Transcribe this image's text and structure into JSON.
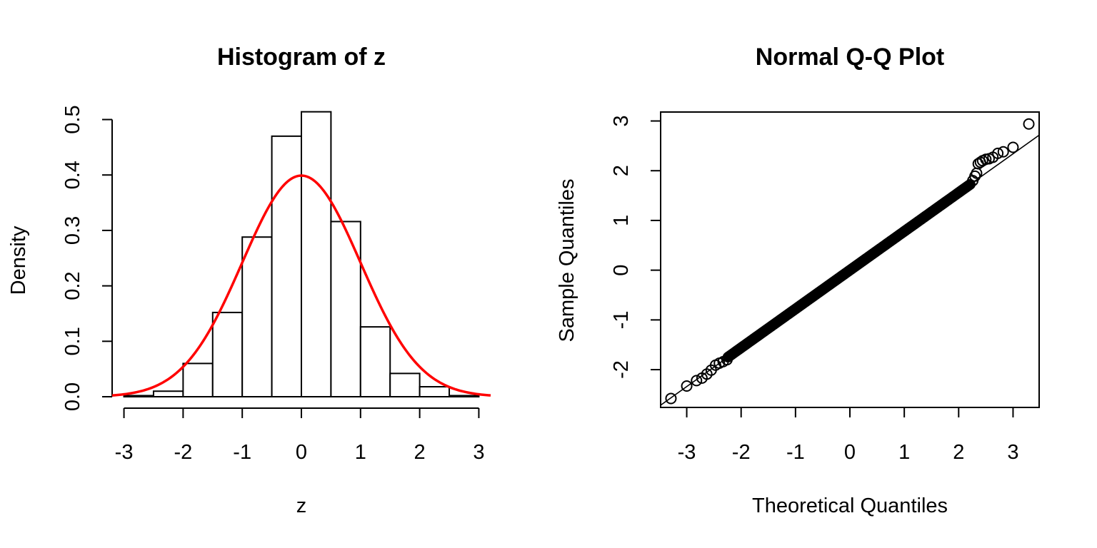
{
  "chart_data": [
    {
      "type": "histogram",
      "title": "Histogram of z",
      "xlabel": "z",
      "ylabel": "Density",
      "xlim": [
        -3.2,
        3.2
      ],
      "ylim": [
        0,
        0.52
      ],
      "xticks": [
        -3,
        -2,
        -1,
        0,
        1,
        2,
        3
      ],
      "yticks": [
        0.0,
        0.1,
        0.2,
        0.3,
        0.4,
        0.5
      ],
      "ytick_labels": [
        "0.0",
        "0.1",
        "0.2",
        "0.3",
        "0.4",
        "0.5"
      ],
      "bins": [
        -3.0,
        -2.5,
        -2.0,
        -1.5,
        -1.0,
        -0.5,
        0.0,
        0.5,
        1.0,
        1.5,
        2.0,
        2.5,
        3.0
      ],
      "density": [
        0.002,
        0.01,
        0.06,
        0.152,
        0.288,
        0.47,
        0.514,
        0.316,
        0.126,
        0.042,
        0.018,
        0.002
      ],
      "overlay": {
        "type": "line",
        "name": "standard normal density",
        "mean": 0,
        "sd": 1,
        "color": "#ff0000"
      }
    },
    {
      "type": "scatter",
      "title": "Normal Q-Q Plot",
      "xlabel": "Theoretical Quantiles",
      "ylabel": "Sample Quantiles",
      "xlim": [
        -3.48,
        3.48
      ],
      "ylim": [
        -2.76,
        3.18
      ],
      "xticks": [
        -3,
        -2,
        -1,
        0,
        1,
        2,
        3
      ],
      "yticks": [
        -2,
        -1,
        0,
        1,
        2,
        3
      ],
      "n": 1000,
      "reference_line": {
        "intercept": 0.0,
        "slope": 0.78
      },
      "points": [
        [
          -3.29,
          -2.58
        ],
        [
          -3.0,
          -2.33
        ],
        [
          -2.82,
          -2.22
        ],
        [
          -2.72,
          -2.17
        ],
        [
          -2.63,
          -2.09
        ],
        [
          -2.55,
          -2.01
        ],
        [
          -2.47,
          -1.91
        ],
        [
          -2.4,
          -1.87
        ],
        [
          -2.33,
          -1.84
        ],
        [
          -2.26,
          -1.8
        ],
        [
          2.26,
          1.8
        ],
        [
          2.3,
          1.89
        ],
        [
          2.33,
          1.95
        ],
        [
          2.36,
          2.14
        ],
        [
          2.4,
          2.17
        ],
        [
          2.44,
          2.2
        ],
        [
          2.5,
          2.23
        ],
        [
          2.56,
          2.24
        ],
        [
          2.63,
          2.27
        ],
        [
          2.72,
          2.35
        ],
        [
          2.82,
          2.38
        ],
        [
          3.0,
          2.47
        ],
        [
          3.29,
          2.94
        ]
      ]
    }
  ]
}
